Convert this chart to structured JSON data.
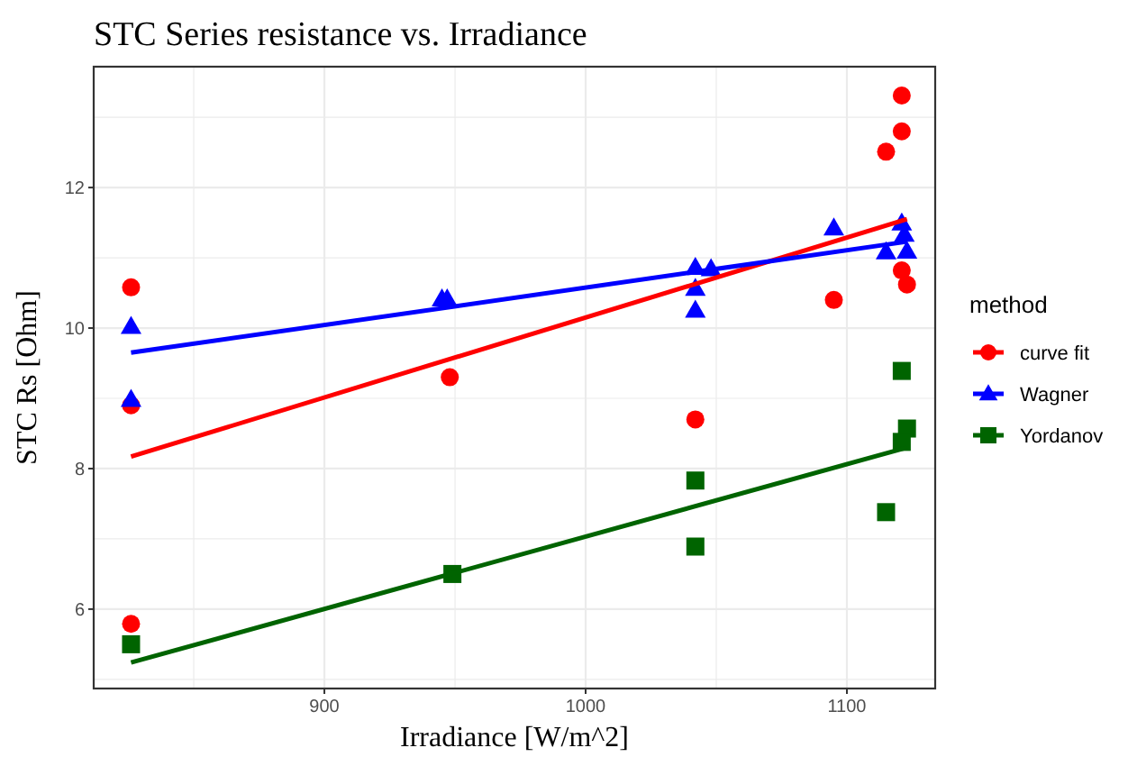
{
  "chart_data": {
    "type": "scatter",
    "title": "STC Series resistance vs. Irradiance",
    "xlabel": "Irradiance [W/m^2]",
    "ylabel": "STC Rs [Ohm]",
    "legend_title": "method",
    "xlim": [
      811.7,
      1133.8
    ],
    "ylim": [
      4.87,
      13.72
    ],
    "xticks": [
      900,
      1000,
      1100
    ],
    "yticks": [
      6,
      8,
      10,
      12
    ],
    "grid": true,
    "legend": "right",
    "series": [
      {
        "name": "curve fit",
        "color": "#ff0000",
        "marker": "circle",
        "x": [
          826,
          826,
          826,
          948,
          1042,
          1095,
          1115,
          1121,
          1121,
          1121,
          1123
        ],
        "values": [
          10.58,
          8.9,
          5.79,
          9.3,
          8.7,
          10.4,
          12.51,
          12.8,
          13.31,
          10.82,
          10.62
        ]
      },
      {
        "name": "Wagner",
        "color": "#0000ff",
        "marker": "triangle",
        "x": [
          826,
          826,
          945,
          947,
          1042,
          1042,
          1042,
          1048,
          1095,
          1115,
          1121,
          1122,
          1123
        ],
        "values": [
          10.02,
          8.98,
          10.41,
          10.41,
          10.86,
          10.56,
          10.25,
          10.84,
          11.42,
          11.08,
          11.49,
          11.33,
          11.09
        ]
      },
      {
        "name": "Yordanov",
        "color": "#006400",
        "marker": "square",
        "x": [
          826,
          949,
          1042,
          1042,
          1115,
          1121,
          1123,
          1121
        ],
        "values": [
          5.5,
          6.5,
          7.83,
          6.89,
          7.38,
          9.39,
          8.57,
          8.38
        ]
      },
      {
        "type": "line",
        "color": "#ff0000",
        "x": [
          826,
          1123
        ],
        "values": [
          8.17,
          11.55
        ]
      },
      {
        "type": "line",
        "color": "#0000ff",
        "x": [
          826,
          1123
        ],
        "values": [
          9.65,
          11.23
        ]
      },
      {
        "type": "line",
        "color": "#006400",
        "x": [
          826,
          1123
        ],
        "values": [
          5.24,
          8.3
        ]
      }
    ]
  }
}
